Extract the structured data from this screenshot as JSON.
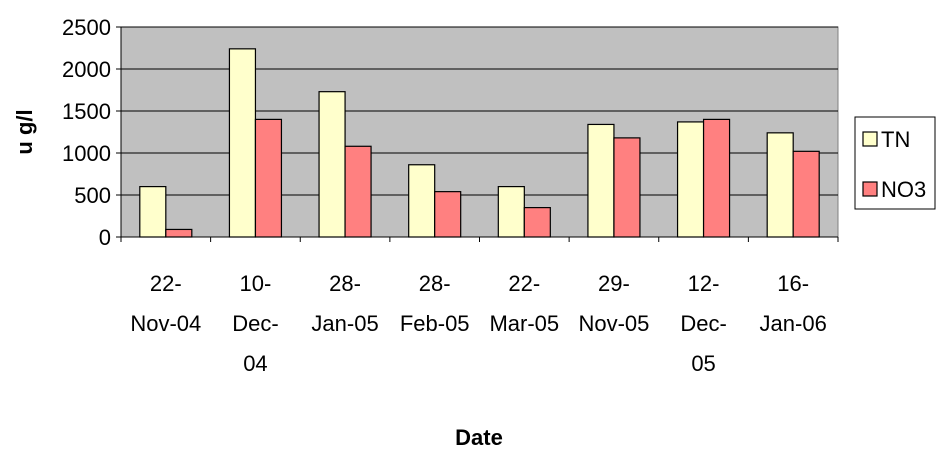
{
  "chart_data": {
    "type": "bar",
    "title": "",
    "xlabel": "Date",
    "ylabel": "u g/l",
    "ylim": [
      0,
      2500
    ],
    "yticks": [
      0,
      500,
      1000,
      1500,
      2000,
      2500
    ],
    "grid": true,
    "legend_position": "right",
    "categories": [
      [
        "22-",
        "Nov-04"
      ],
      [
        "10-",
        "Dec-",
        "04"
      ],
      [
        "28-",
        "Jan-05"
      ],
      [
        "28-",
        "Feb-05"
      ],
      [
        "22-",
        "Mar-05"
      ],
      [
        "29-",
        "Nov-05"
      ],
      [
        "12-",
        "Dec-",
        "05"
      ],
      [
        "16-",
        "Jan-06"
      ]
    ],
    "series": [
      {
        "name": "TN",
        "color": "#FFFFCC",
        "values": [
          600,
          2240,
          1730,
          860,
          600,
          1340,
          1370,
          1240
        ]
      },
      {
        "name": "NO3",
        "color": "#FF8080",
        "values": [
          90,
          1400,
          1080,
          540,
          350,
          1180,
          1400,
          1020
        ]
      }
    ],
    "plot_background": "#C0C0C0"
  }
}
